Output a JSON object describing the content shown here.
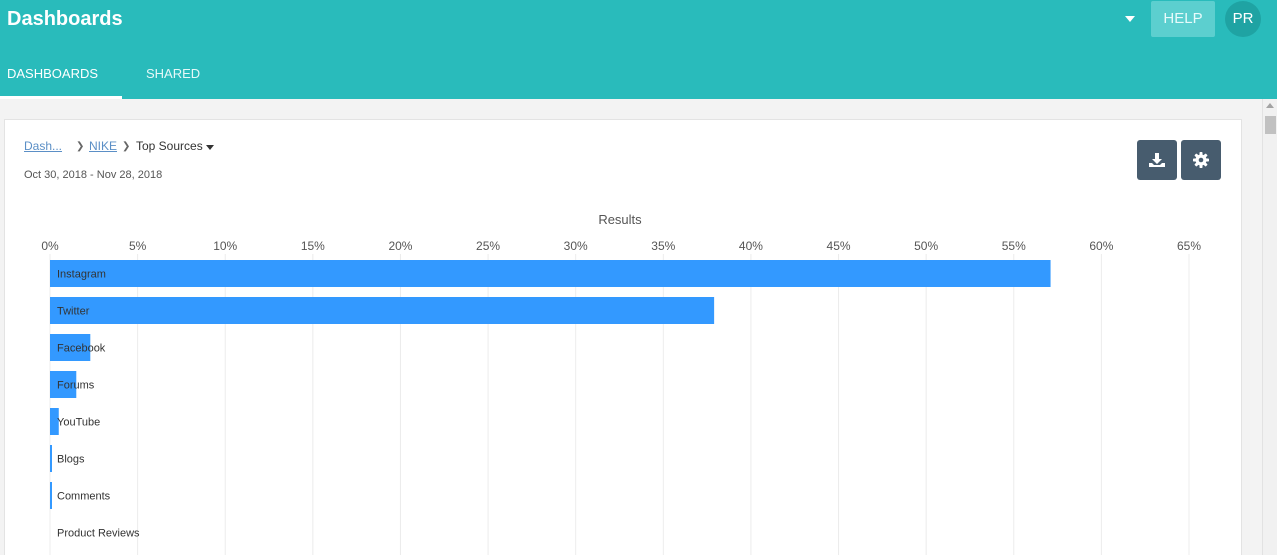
{
  "header": {
    "title": "Dashboards",
    "help_label": "HELP",
    "avatar_initials": "PR"
  },
  "tabs": [
    {
      "label": "DASHBOARDS",
      "active": true
    },
    {
      "label": "SHARED",
      "active": false
    }
  ],
  "breadcrumb": {
    "root": "Dash...",
    "parent": "NIKE",
    "current": "Top Sources"
  },
  "date_range": "Oct 30, 2018 - Nov 28, 2018",
  "toolbar": {
    "download_icon": "download-icon",
    "settings_icon": "gear-icon"
  },
  "colors": {
    "header": "#29bbbb",
    "bar": "#3399ff",
    "tool_button": "#475c6e"
  },
  "chart_data": {
    "type": "bar",
    "orientation": "horizontal",
    "title": "Results",
    "xlim": [
      0,
      65
    ],
    "x_ticks": [
      "0%",
      "5%",
      "10%",
      "15%",
      "20%",
      "25%",
      "30%",
      "35%",
      "40%",
      "45%",
      "50%",
      "55%",
      "60%",
      "65%"
    ],
    "categories": [
      "Instagram",
      "Twitter",
      "Facebook",
      "Forums",
      "YouTube",
      "Blogs",
      "Comments",
      "Product Reviews"
    ],
    "values": [
      57.1,
      37.9,
      2.3,
      1.5,
      0.5,
      0.1,
      0.1,
      0.0
    ],
    "grid": true
  }
}
